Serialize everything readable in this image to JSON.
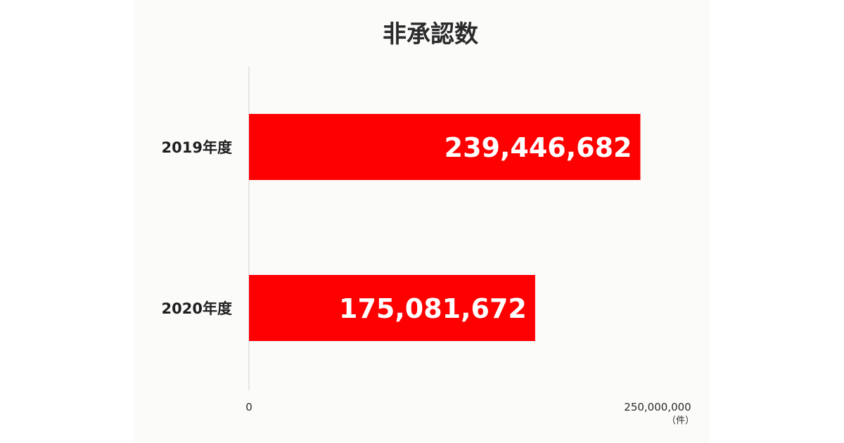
{
  "chart_data": {
    "type": "bar",
    "orientation": "horizontal",
    "title": "非承認数",
    "categories": [
      "2019年度",
      "2020年度"
    ],
    "values": [
      239446682,
      175081672
    ],
    "value_labels": [
      "239,446,682",
      "175,081,672"
    ],
    "xlim": [
      0,
      250000000
    ],
    "x_tick_labels": [
      "0",
      "250,000,000"
    ],
    "x_unit": "（件）",
    "bar_color": "#ff0000",
    "grid": false,
    "legend": "none"
  }
}
